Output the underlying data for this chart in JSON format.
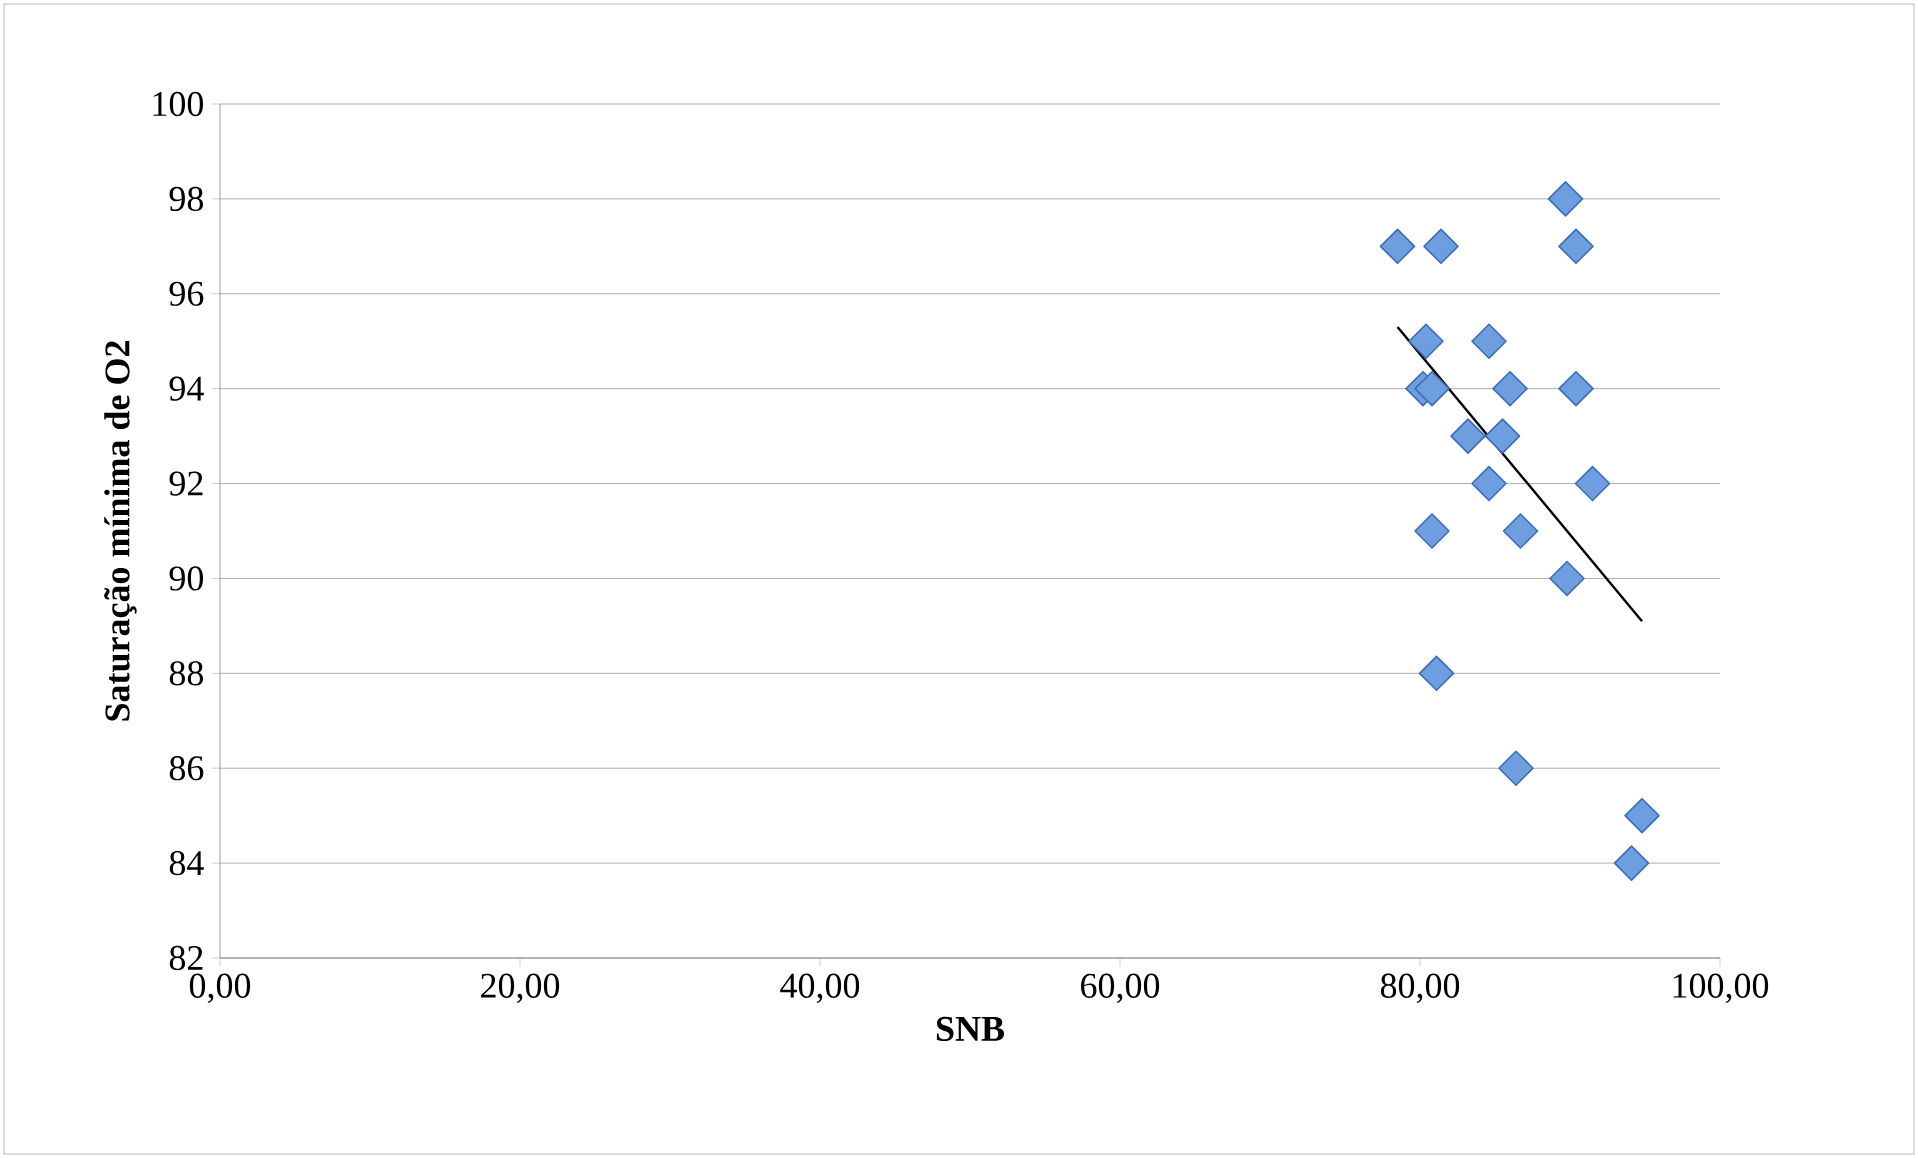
{
  "chart_data": {
    "type": "scatter",
    "xlabel": "SNB",
    "ylabel": "Saturação mínima de O2",
    "xlim": [
      0,
      100
    ],
    "ylim": [
      82,
      100
    ],
    "xticks": [
      {
        "value": 0,
        "label": "0,00"
      },
      {
        "value": 20,
        "label": "20,00"
      },
      {
        "value": 40,
        "label": "40,00"
      },
      {
        "value": 60,
        "label": "60,00"
      },
      {
        "value": 80,
        "label": "80,00"
      },
      {
        "value": 100,
        "label": "100,00"
      }
    ],
    "yticks": [
      82,
      84,
      86,
      88,
      90,
      92,
      94,
      96,
      98,
      100
    ],
    "grid": "y",
    "marker": "diamond",
    "series": [
      {
        "color": "#6f9ee0",
        "x": [
          89.7,
          78.5,
          81.4,
          90.4,
          80.4,
          84.6,
          80.2,
          80.8,
          86.0,
          90.4,
          83.2,
          85.5,
          84.6,
          91.5,
          80.8,
          86.7,
          89.8,
          81.1,
          86.4,
          94.8,
          94.1
        ],
        "values": [
          98,
          97,
          97,
          97,
          95,
          95,
          94,
          94,
          94,
          94,
          93,
          93,
          92,
          92,
          91,
          91,
          90,
          88,
          86,
          85,
          84
        ]
      },
      {
        "type": "line",
        "marker": "none",
        "color": "#000000",
        "x": [
          78.5,
          94.8
        ],
        "values": [
          95.3,
          89.1
        ]
      }
    ]
  }
}
